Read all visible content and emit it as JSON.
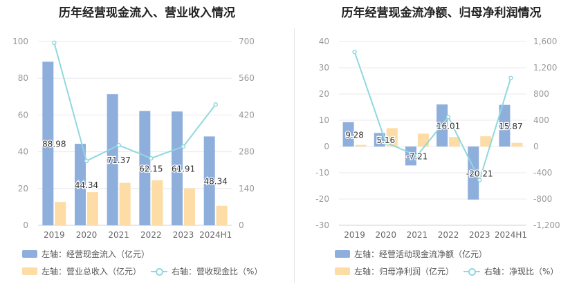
{
  "colors": {
    "blue": "#8eaedc",
    "orange": "#fddca5",
    "teal": "#8fd8de",
    "grid": "#e8e8ee",
    "axis_text": "#999999"
  },
  "left": {
    "title": "历年经营现金流入、营业收入情况",
    "legend": {
      "bar1": "左轴：经营现金流入（亿元）",
      "bar2": "左轴：营业总收入（亿元）",
      "line": "右轴：营收现金比（%）"
    }
  },
  "right": {
    "title": "历年经营现金流净额、归母净利润情况",
    "legend": {
      "bar1": "左轴：经营活动现金流净额（亿元）",
      "bar2": "左轴：归母净利润（亿元）",
      "line": "右轴：净现比（%）"
    }
  },
  "chart_data": [
    {
      "type": "bar",
      "title": "历年经营现金流入、营业收入情况",
      "categories": [
        "2019",
        "2020",
        "2021",
        "2022",
        "2023",
        "2024H1"
      ],
      "ylim": [
        0,
        100
      ],
      "yticks": [
        0,
        20,
        40,
        60,
        80,
        100
      ],
      "y2lim": [
        0,
        700
      ],
      "y2ticks": [
        0,
        140,
        280,
        420,
        560,
        700
      ],
      "series": [
        {
          "name": "左轴：经营现金流入（亿元）",
          "axis": "left",
          "type": "bar",
          "color": "#8eaedc",
          "values": [
            88.98,
            44.34,
            71.37,
            62.15,
            61.91,
            48.34
          ],
          "labels": [
            "88.98",
            "44.34",
            "71.37",
            "62.15",
            "61.91",
            "48.34"
          ]
        },
        {
          "name": "左轴：营业总收入（亿元）",
          "axis": "left",
          "type": "bar",
          "color": "#fddca5",
          "values": [
            12.7,
            18.0,
            23.1,
            24.5,
            20.1,
            10.6
          ]
        },
        {
          "name": "右轴：营收现金比（%）",
          "axis": "right",
          "type": "line",
          "color": "#8fd8de",
          "values": [
            695,
            245,
            305,
            255,
            300,
            460
          ]
        }
      ]
    },
    {
      "type": "bar",
      "title": "历年经营现金流净额、归母净利润情况",
      "categories": [
        "2019",
        "2020",
        "2021",
        "2022",
        "2023",
        "2024H1"
      ],
      "ylim": [
        -30,
        40
      ],
      "yticks": [
        -30,
        -20,
        -10,
        0,
        10,
        20,
        30,
        40
      ],
      "y2lim": [
        -1200,
        1600
      ],
      "y2ticks": [
        -1200,
        -800,
        -400,
        0,
        400,
        800,
        1200,
        1600
      ],
      "y2ticklabels": [
        "-1,200",
        "-800",
        "-400",
        "0",
        "400",
        "800",
        "1,200",
        "1,600"
      ],
      "series": [
        {
          "name": "左轴：经营活动现金流净额（亿元）",
          "axis": "left",
          "type": "bar",
          "color": "#8eaedc",
          "values": [
            9.28,
            5.16,
            -7.21,
            16.01,
            -20.21,
            15.87
          ],
          "labels": [
            "9.28",
            "5.16",
            "-7.21",
            "16.01",
            "-20.21",
            "15.87"
          ]
        },
        {
          "name": "左轴：归母净利润（亿元）",
          "axis": "left",
          "type": "bar",
          "color": "#fddca5",
          "values": [
            0.6,
            7.0,
            4.9,
            3.6,
            3.9,
            1.4
          ]
        },
        {
          "name": "右轴：净现比（%）",
          "axis": "right",
          "type": "line",
          "color": "#8fd8de",
          "values": [
            1440,
            60,
            -140,
            450,
            -510,
            1045
          ]
        }
      ]
    }
  ]
}
